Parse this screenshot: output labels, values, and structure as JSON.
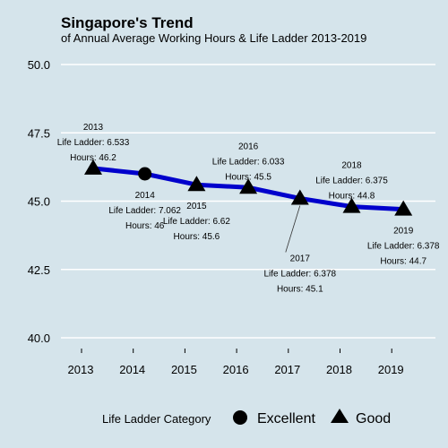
{
  "chart_data": {
    "type": "line",
    "title": "Singapore's Trend",
    "subtitle": "of Annual Average Working Hours & Life Ladder 2013-2019",
    "xlabel": "",
    "ylabel": "",
    "x": [
      "2013",
      "2014",
      "2015",
      "2016",
      "2017",
      "2018",
      "2019"
    ],
    "series": [
      {
        "values": [
          46.2,
          46.0,
          45.6,
          45.5,
          45.1,
          44.8,
          44.7
        ],
        "color": "#0000cc"
      }
    ],
    "life_ladder": [
      6.533,
      7.062,
      6.62,
      6.033,
      6.378,
      6.375,
      6.378
    ],
    "category": [
      "Good",
      "Excellent",
      "Good",
      "Good",
      "Good",
      "Good",
      "Good"
    ],
    "ylim": [
      39.7,
      50.4
    ],
    "yticks": [
      "40.0",
      "42.5",
      "45.0",
      "47.5",
      "50.0"
    ],
    "ytick_values": [
      40.0,
      42.5,
      45.0,
      47.5,
      50.0
    ],
    "grid": true,
    "annotations": [
      {
        "year": "2013",
        "ladder": "Life Ladder: 6.533",
        "hours": "Hours: 46.2",
        "position": "above"
      },
      {
        "year": "2014",
        "ladder": "Life Ladder: 7.062",
        "hours": "Hours: 46",
        "position": "below"
      },
      {
        "year": "2015",
        "ladder": "Life Ladder: 6.62",
        "hours": "Hours: 45.6",
        "position": "below"
      },
      {
        "year": "2016",
        "ladder": "Life Ladder: 6.033",
        "hours": "Hours: 45.5",
        "position": "above"
      },
      {
        "year": "2017",
        "ladder": "Life Ladder: 6.378",
        "hours": "Hours: 45.1",
        "position": "below-far"
      },
      {
        "year": "2018",
        "ladder": "Life Ladder: 6.375",
        "hours": "Hours: 44.8",
        "position": "above"
      },
      {
        "year": "2019",
        "ladder": "Life Ladder: 6.378",
        "hours": "Hours: 44.7",
        "position": "below"
      }
    ],
    "legend": {
      "title": "Life Ladder Category",
      "position": "bottom",
      "items": [
        {
          "label": "Excellent",
          "shape": "circle"
        },
        {
          "label": "Good",
          "shape": "triangle"
        }
      ]
    },
    "colors": {
      "background": "#d5e4eb",
      "line": "#0000cc",
      "marker": "#000000",
      "grid": "#ffffff"
    }
  }
}
